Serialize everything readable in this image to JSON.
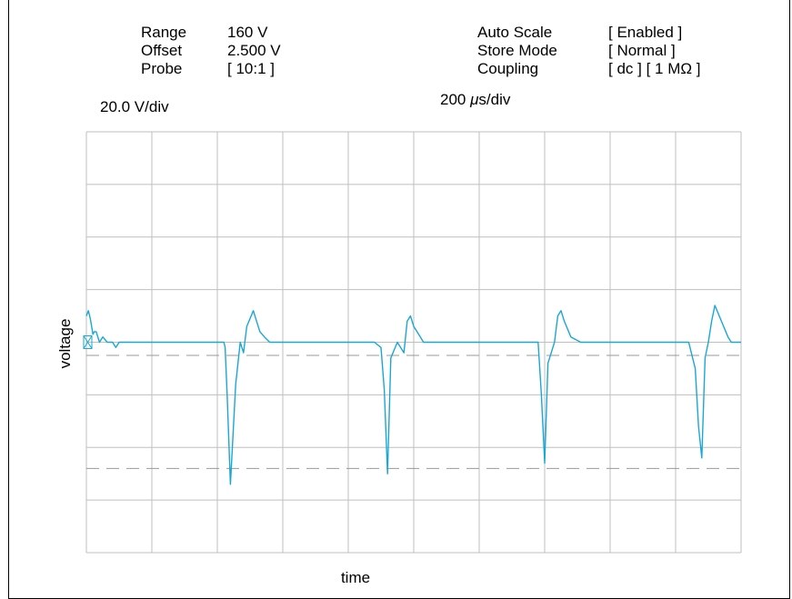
{
  "settings": {
    "left": [
      {
        "name": "Range",
        "value": "160 V"
      },
      {
        "name": "Offset",
        "value": "2.500 V"
      },
      {
        "name": "Probe",
        "value": "[ 10:1 ]"
      }
    ],
    "right": [
      {
        "name": "Auto Scale",
        "value": "[ Enabled ]"
      },
      {
        "name": "Store Mode",
        "value": "[ Normal ]"
      },
      {
        "name": "Coupling",
        "value": "[ dc ] [ 1 MΩ ]"
      }
    ]
  },
  "scale": {
    "vertical": "20.0 V/div",
    "horizontal_prefix": "200 ",
    "horizontal_unit_mu": "μ",
    "horizontal_suffix": "s/div"
  },
  "colors": {
    "trace": "#1aa7d6",
    "grid": "#bfbfbf",
    "frame": "#000000",
    "reference_dash": "#9a9a9a"
  },
  "chart_data": {
    "type": "line",
    "xlabel": "time",
    "ylabel": "voltage",
    "x_divisions": 10,
    "y_divisions": 8,
    "xlim": [
      0,
      10
    ],
    "ylim": [
      -4,
      4
    ],
    "grid": true,
    "reference_levels": [
      -0.25,
      -2.4
    ],
    "ground_marker": true,
    "series": [
      {
        "x": [
          0.0,
          0.03,
          0.06,
          0.1,
          0.12,
          0.15,
          0.2,
          0.25,
          0.32,
          0.4,
          0.45,
          0.5,
          0.55,
          0.7,
          0.8,
          1.2,
          1.7,
          1.9,
          2.0,
          2.1,
          2.12,
          2.15,
          2.2,
          2.28,
          2.35,
          2.4,
          2.45,
          2.55,
          2.6,
          2.65,
          2.72,
          2.8,
          2.9,
          3.0,
          3.2,
          3.6,
          4.0,
          4.3,
          4.4,
          4.5,
          4.55,
          4.6,
          4.65,
          4.75,
          4.85,
          4.9,
          4.95,
          5.0,
          5.05,
          5.15,
          5.3,
          5.6,
          6.0,
          6.4,
          6.9,
          6.95,
          7.0,
          7.05,
          7.15,
          7.2,
          7.25,
          7.3,
          7.4,
          7.55,
          7.7,
          8.0,
          8.4,
          8.8,
          9.2,
          9.3,
          9.35,
          9.4,
          9.45,
          9.5,
          9.55,
          9.6,
          9.7,
          9.8,
          9.85,
          10.0
        ],
        "y": [
          0.5,
          0.6,
          0.45,
          0.15,
          0.2,
          0.2,
          0.0,
          0.1,
          0.0,
          0.0,
          -0.1,
          0.0,
          0.0,
          0.0,
          0.0,
          0.0,
          0.0,
          0.0,
          0.0,
          0.0,
          -0.1,
          -1.0,
          -2.7,
          -0.8,
          0.0,
          -0.2,
          0.3,
          0.6,
          0.4,
          0.2,
          0.1,
          0.0,
          0.0,
          0.0,
          0.0,
          0.0,
          0.0,
          0.0,
          0.0,
          -0.1,
          -0.9,
          -2.5,
          -0.3,
          0.0,
          -0.2,
          0.4,
          0.5,
          0.3,
          0.2,
          0.0,
          0.0,
          0.0,
          0.0,
          0.0,
          0.0,
          -1.0,
          -2.3,
          -0.4,
          0.0,
          0.5,
          0.6,
          0.4,
          0.1,
          0.0,
          0.0,
          0.0,
          0.0,
          0.0,
          0.0,
          -0.5,
          -1.6,
          -2.2,
          -0.3,
          0.0,
          0.4,
          0.7,
          0.4,
          0.1,
          0.0,
          0.0
        ]
      }
    ]
  }
}
